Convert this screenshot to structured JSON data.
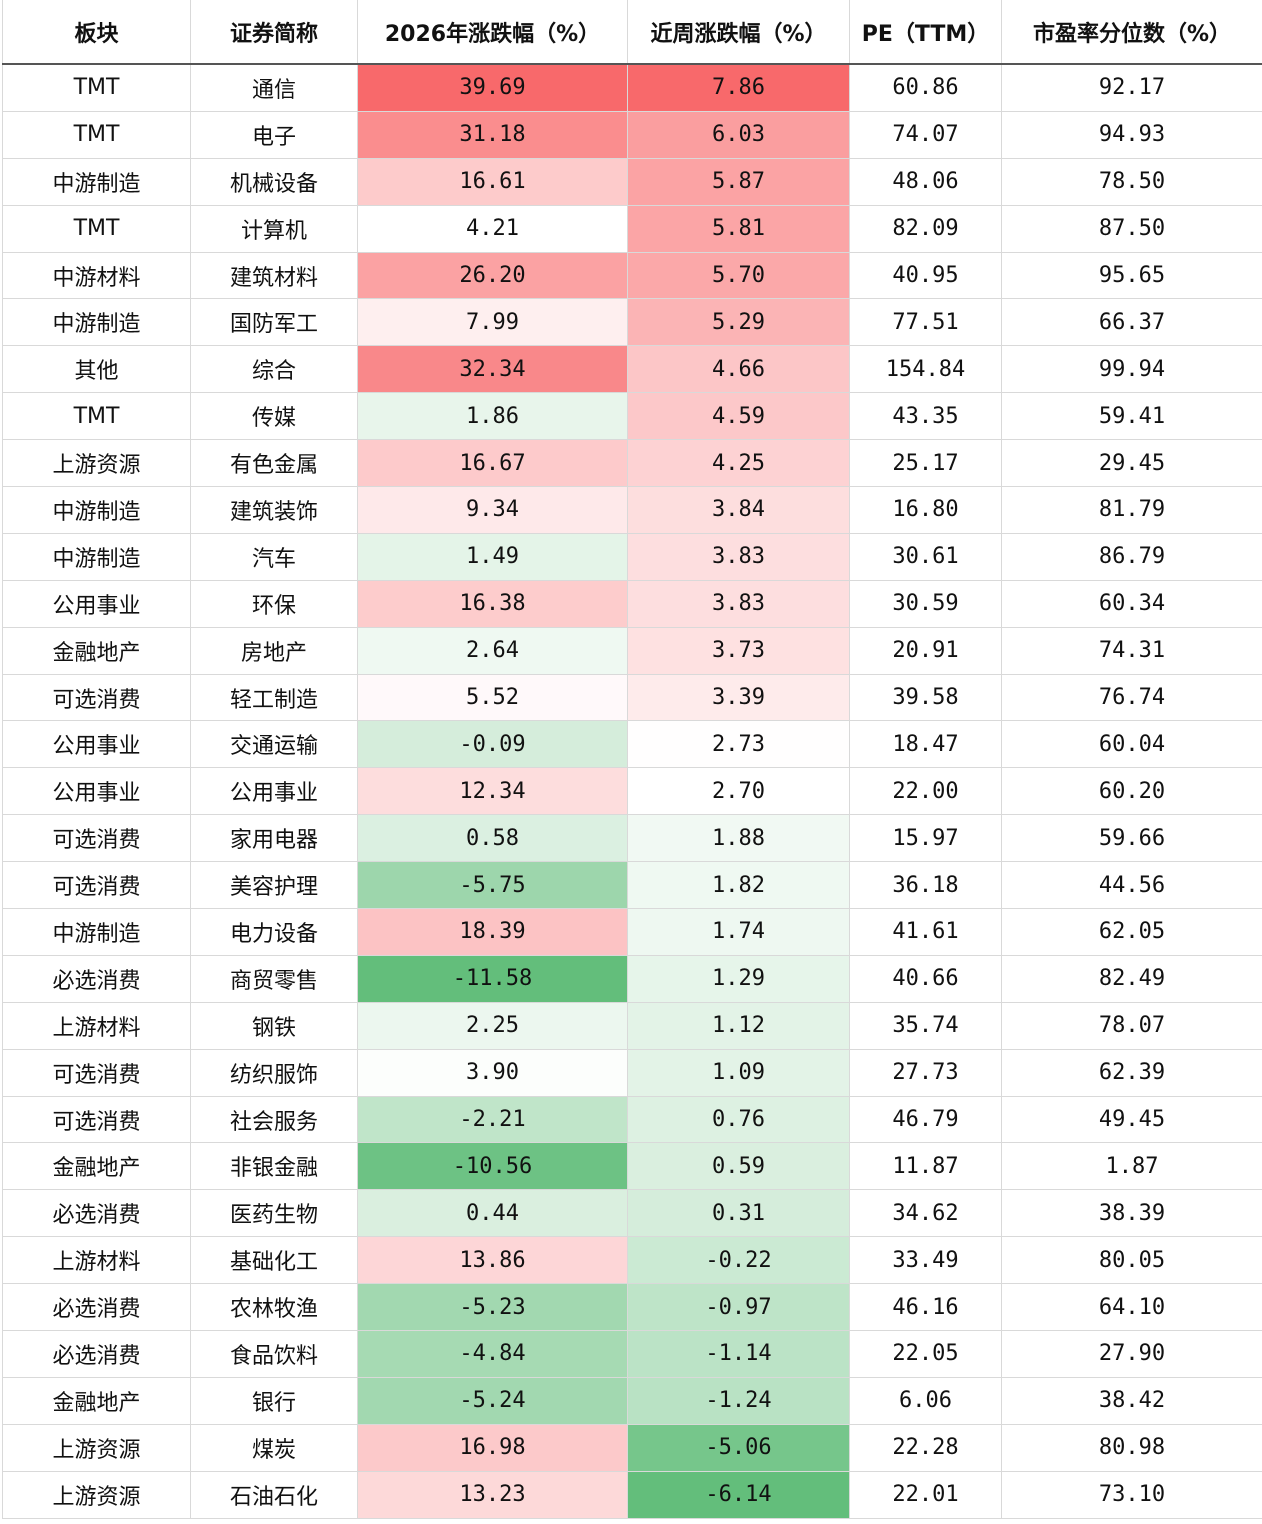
{
  "table": {
    "header": [
      "板块",
      "证券简称",
      "2026年涨跌幅（%）",
      "近周涨跌幅（%）",
      "PE（TTM）",
      "市盈率分位数（%）"
    ],
    "rows": [
      [
        "TMT",
        "通信",
        "39.69",
        "7.86",
        "60.86",
        "92.17"
      ],
      [
        "TMT",
        "电子",
        "31.18",
        "6.03",
        "74.07",
        "94.93"
      ],
      [
        "中游制造",
        "机械设备",
        "16.61",
        "5.87",
        "48.06",
        "78.50"
      ],
      [
        "TMT",
        "计算机",
        "4.21",
        "5.81",
        "82.09",
        "87.50"
      ],
      [
        "中游材料",
        "建筑材料",
        "26.20",
        "5.70",
        "40.95",
        "95.65"
      ],
      [
        "中游制造",
        "国防军工",
        "7.99",
        "5.29",
        "77.51",
        "66.37"
      ],
      [
        "其他",
        "综合",
        "32.34",
        "4.66",
        "154.84",
        "99.94"
      ],
      [
        "TMT",
        "传媒",
        "1.86",
        "4.59",
        "43.35",
        "59.41"
      ],
      [
        "上游资源",
        "有色金属",
        "16.67",
        "4.25",
        "25.17",
        "29.45"
      ],
      [
        "中游制造",
        "建筑装饰",
        "9.34",
        "3.84",
        "16.80",
        "81.79"
      ],
      [
        "中游制造",
        "汽车",
        "1.49",
        "3.83",
        "30.61",
        "86.79"
      ],
      [
        "公用事业",
        "环保",
        "16.38",
        "3.83",
        "30.59",
        "60.34"
      ],
      [
        "金融地产",
        "房地产",
        "2.64",
        "3.73",
        "20.91",
        "74.31"
      ],
      [
        "可选消费",
        "轻工制造",
        "5.52",
        "3.39",
        "39.58",
        "76.74"
      ],
      [
        "公用事业",
        "交通运输",
        "-0.09",
        "2.73",
        "18.47",
        "60.04"
      ],
      [
        "公用事业",
        "公用事业",
        "12.34",
        "2.70",
        "22.00",
        "60.20"
      ],
      [
        "可选消费",
        "家用电器",
        "0.58",
        "1.88",
        "15.97",
        "59.66"
      ],
      [
        "可选消费",
        "美容护理",
        "-5.75",
        "1.82",
        "36.18",
        "44.56"
      ],
      [
        "中游制造",
        "电力设备",
        "18.39",
        "1.74",
        "41.61",
        "62.05"
      ],
      [
        "必选消费",
        "商贸零售",
        "-11.58",
        "1.29",
        "40.66",
        "82.49"
      ],
      [
        "上游材料",
        "钢铁",
        "2.25",
        "1.12",
        "35.74",
        "78.07"
      ],
      [
        "可选消费",
        "纺织服饰",
        "3.90",
        "1.09",
        "27.73",
        "62.39"
      ],
      [
        "可选消费",
        "社会服务",
        "-2.21",
        "0.76",
        "46.79",
        "49.45"
      ],
      [
        "金融地产",
        "非银金融",
        "-10.56",
        "0.59",
        "11.87",
        "1.87"
      ],
      [
        "必选消费",
        "医药生物",
        "0.44",
        "0.31",
        "34.62",
        "38.39"
      ],
      [
        "上游材料",
        "基础化工",
        "13.86",
        "-0.22",
        "33.49",
        "80.05"
      ],
      [
        "必选消费",
        "农林牧渔",
        "-5.23",
        "-0.97",
        "46.16",
        "64.10"
      ],
      [
        "必选消费",
        "食品饮料",
        "-4.84",
        "-1.14",
        "22.05",
        "27.90"
      ],
      [
        "金融地产",
        "银行",
        "-5.24",
        "-1.24",
        "6.06",
        "38.42"
      ],
      [
        "上游资源",
        "煤炭",
        "16.98",
        "-5.06",
        "22.28",
        "80.98"
      ],
      [
        "上游资源",
        "石油石化",
        "13.23",
        "-6.14",
        "22.01",
        "73.10"
      ]
    ],
    "colorscale": {
      "columns": [
        2,
        3
      ],
      "low": "#63be7b",
      "mid": "#ffffff",
      "high": "#f8696b"
    }
  }
}
